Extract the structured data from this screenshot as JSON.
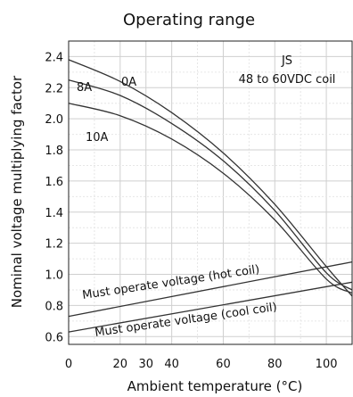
{
  "chart_data": {
    "type": "line",
    "title": "Operating range",
    "xlabel": "Ambient temperature (°C)",
    "ylabel": "Nominal voltage multiplying factor",
    "xlim": [
      0,
      110
    ],
    "ylim": [
      0.55,
      2.5
    ],
    "x_ticks": [
      0,
      20,
      30,
      40,
      60,
      80,
      100
    ],
    "y_ticks": [
      0.6,
      0.8,
      1.0,
      1.2,
      1.4,
      1.6,
      1.8,
      2.0,
      2.2,
      2.4
    ],
    "grid": true,
    "series": [
      {
        "name": "0A",
        "x": [
          0,
          20,
          40,
          60,
          80,
          100,
          110
        ],
        "y": [
          2.38,
          2.24,
          2.04,
          1.78,
          1.45,
          1.05,
          0.86
        ]
      },
      {
        "name": "8A",
        "x": [
          0,
          20,
          40,
          60,
          80,
          100,
          110
        ],
        "y": [
          2.25,
          2.15,
          1.97,
          1.73,
          1.41,
          1.01,
          0.9
        ]
      },
      {
        "name": "10A",
        "x": [
          0,
          20,
          40,
          60,
          80,
          100,
          110
        ],
        "y": [
          2.1,
          2.02,
          1.87,
          1.65,
          1.35,
          0.97,
          0.88
        ]
      },
      {
        "name": "Must operate voltage (hot coil)",
        "x": [
          0,
          110
        ],
        "y": [
          0.73,
          1.08
        ]
      },
      {
        "name": "Must operate voltage (cool coil)",
        "x": [
          0,
          110
        ],
        "y": [
          0.63,
          0.95
        ]
      }
    ],
    "annotations": {
      "model": "JS",
      "coil": "48 to 60VDC coil",
      "label_0A": "0A",
      "label_8A": "8A",
      "label_10A": "10A",
      "label_hot": "Must operate voltage (hot coil)",
      "label_cool": "Must operate voltage (cool coil)"
    }
  }
}
